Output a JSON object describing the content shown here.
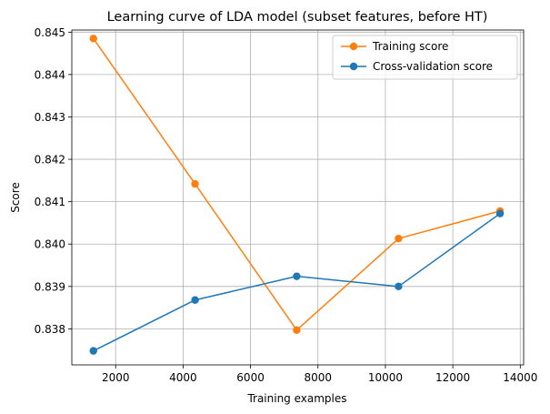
{
  "chart_data": {
    "type": "line",
    "title": "Learning curve of LDA model (subset features, before HT)",
    "xlabel": "Training examples",
    "ylabel": "Score",
    "xlim": [
      700,
      14100
    ],
    "ylim": [
      0.83715,
      0.84505
    ],
    "xticks": [
      2000,
      4000,
      6000,
      8000,
      10000,
      12000,
      14000
    ],
    "yticks": [
      0.838,
      0.839,
      0.84,
      0.841,
      0.842,
      0.843,
      0.844,
      0.845
    ],
    "xtick_labels": [
      "2000",
      "4000",
      "6000",
      "8000",
      "10000",
      "12000",
      "14000"
    ],
    "ytick_labels": [
      "0.838",
      "0.839",
      "0.840",
      "0.841",
      "0.842",
      "0.843",
      "0.844",
      "0.845"
    ],
    "grid": true,
    "legend_position": "top-right",
    "x": [
      1340,
      4355,
      7370,
      10390,
      13400
    ],
    "series": [
      {
        "name": "Training score",
        "color": "#ff7f0e",
        "values": [
          0.84485,
          0.84142,
          0.83797,
          0.84013,
          0.84078
        ]
      },
      {
        "name": "Cross-validation score",
        "color": "#1f77b4",
        "values": [
          0.83748,
          0.83868,
          0.83924,
          0.839,
          0.84072
        ]
      }
    ]
  }
}
